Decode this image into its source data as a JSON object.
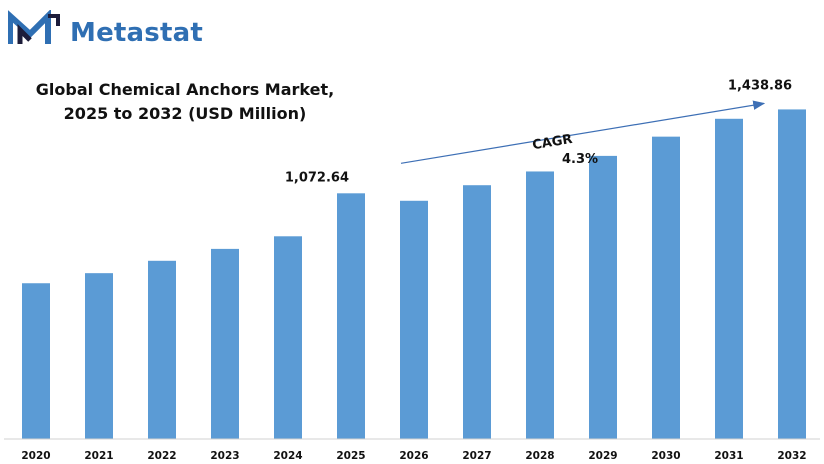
{
  "brand": {
    "name": "Metastat",
    "logo_color": "#2f6fb3"
  },
  "chart_data": {
    "type": "bar",
    "title_line1": "Global Chemical Anchors Market,",
    "title_line2": "2025 to 2032 (USD Million)",
    "categories": [
      "2020",
      "2021",
      "2022",
      "2023",
      "2024",
      "2025",
      "2026",
      "2027",
      "2028",
      "2029",
      "2030",
      "2031",
      "2032"
    ],
    "values": [
      680,
      724,
      778,
      830,
      885,
      1072.64,
      1040,
      1108,
      1168,
      1236,
      1320,
      1398,
      1438.86
    ],
    "data_labels": [
      {
        "category": "2025",
        "text": "1,072.64"
      },
      {
        "category": "2032",
        "text": "1,438.86"
      }
    ],
    "annotation": {
      "label": "CAGR",
      "value": "4.3%",
      "from": "2025",
      "to": "2032"
    },
    "bar_color": "#5b9bd5",
    "arrow_color": "#3d6fb5",
    "ylim": [
      0,
      1480
    ],
    "grid": false,
    "legend": "none"
  }
}
